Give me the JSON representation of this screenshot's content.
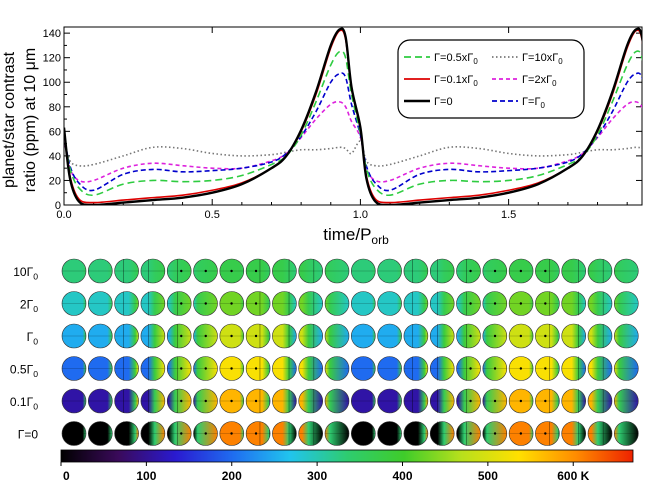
{
  "chart_data": [
    {
      "type": "line",
      "ylabel_line1": "planet/star contrast",
      "ylabel_line2": "ratio (ppm) at 10 μm",
      "xlabel_main": "time/P",
      "xlabel_sub": "orb",
      "xlim": [
        0,
        1.95
      ],
      "ylim": [
        0,
        145
      ],
      "xticks": [
        0.0,
        0.5,
        1.0,
        1.5
      ],
      "xtick_labels": [
        "0.0",
        "0.5",
        "1.0",
        "1.5"
      ],
      "yticks": [
        0,
        20,
        40,
        60,
        80,
        100,
        120,
        140
      ],
      "ytick_labels": [
        "0",
        "20",
        "40",
        "60",
        "80",
        "100",
        "120",
        "140"
      ],
      "legend_position": "top-right",
      "series": [
        {
          "name": "Γ=0.5xΓ0",
          "label_main": "Γ=0.5xΓ",
          "label_sub": "0",
          "color": "#2ecc40",
          "dash": "7,4",
          "x": [
            0.0,
            0.02,
            0.05,
            0.1,
            0.2,
            0.3,
            0.4,
            0.5,
            0.6,
            0.7,
            0.75,
            0.8,
            0.85,
            0.9,
            0.93,
            0.95,
            0.97,
            1.0
          ],
          "y": [
            58,
            30,
            14,
            8,
            17,
            20,
            19,
            20,
            24,
            33,
            40,
            57,
            84,
            114,
            125,
            120,
            90,
            58
          ]
        },
        {
          "name": "Γ=10xΓ0",
          "label_main": "Γ=10xΓ",
          "label_sub": "0",
          "color": "#777777",
          "dash": "1.5,2.5",
          "x": [
            0.0,
            0.02,
            0.05,
            0.1,
            0.2,
            0.3,
            0.4,
            0.5,
            0.6,
            0.7,
            0.75,
            0.8,
            0.85,
            0.9,
            0.93,
            0.95,
            0.97,
            1.0
          ],
          "y": [
            52,
            36,
            32,
            33,
            40,
            47,
            46,
            42,
            40,
            41,
            43,
            45,
            45,
            46,
            47,
            46,
            42,
            52
          ]
        },
        {
          "name": "Γ=0.1xΓ0",
          "label_main": "Γ=0.1xΓ",
          "label_sub": "0",
          "color": "#dd0000",
          "dash": "",
          "x": [
            0.0,
            0.02,
            0.05,
            0.1,
            0.2,
            0.3,
            0.4,
            0.5,
            0.6,
            0.7,
            0.75,
            0.8,
            0.85,
            0.9,
            0.93,
            0.95,
            0.97,
            1.0
          ],
          "y": [
            62,
            24,
            5,
            2,
            4,
            6,
            8,
            12,
            18,
            30,
            40,
            60,
            90,
            128,
            142,
            135,
            95,
            62
          ]
        },
        {
          "name": "Γ=2xΓ0",
          "label_main": "Γ=2xΓ",
          "label_sub": "0",
          "color": "#dd22dd",
          "dash": "4,3",
          "x": [
            0.0,
            0.02,
            0.05,
            0.1,
            0.2,
            0.3,
            0.4,
            0.5,
            0.6,
            0.7,
            0.75,
            0.8,
            0.85,
            0.9,
            0.93,
            0.95,
            0.97,
            1.0
          ],
          "y": [
            55,
            30,
            20,
            20,
            30,
            34,
            32,
            30,
            30,
            36,
            42,
            55,
            70,
            82,
            84,
            80,
            68,
            55
          ]
        },
        {
          "name": "Γ=0",
          "label_main": "Γ=0",
          "label_sub": "",
          "color": "#000000",
          "dash": "",
          "x": [
            0.0,
            0.02,
            0.05,
            0.1,
            0.2,
            0.3,
            0.4,
            0.5,
            0.6,
            0.7,
            0.75,
            0.8,
            0.85,
            0.9,
            0.93,
            0.95,
            0.97,
            1.0
          ],
          "y": [
            63,
            22,
            3,
            0,
            2,
            4,
            6,
            10,
            17,
            30,
            40,
            61,
            92,
            130,
            143,
            137,
            96,
            63
          ]
        },
        {
          "name": "Γ=Γ0",
          "label_main": "Γ=Γ",
          "label_sub": "0",
          "color": "#0000cc",
          "dash": "5,3",
          "x": [
            0.0,
            0.02,
            0.05,
            0.1,
            0.2,
            0.3,
            0.4,
            0.5,
            0.6,
            0.7,
            0.75,
            0.8,
            0.85,
            0.9,
            0.93,
            0.95,
            0.97,
            1.0
          ],
          "y": [
            57,
            32,
            18,
            12,
            25,
            29,
            27,
            28,
            30,
            35,
            42,
            56,
            76,
            100,
            107,
            104,
            82,
            57
          ]
        }
      ]
    },
    {
      "type": "heatmap",
      "row_labels": [
        {
          "main": "10Γ",
          "sub": "0"
        },
        {
          "main": "2Γ",
          "sub": "0"
        },
        {
          "main": "Γ",
          "sub": "0"
        },
        {
          "main": "0.5Γ",
          "sub": "0"
        },
        {
          "main": "0.1Γ",
          "sub": "0"
        },
        {
          "main": "Γ=0",
          "sub": ""
        }
      ],
      "n_columns": 22,
      "colorbar_ticks": [
        "0",
        "100",
        "200",
        "300",
        "400",
        "500",
        "600 K"
      ],
      "colorbar_tick_values": [
        0,
        100,
        200,
        300,
        400,
        500,
        600
      ],
      "colorbar_range": [
        0,
        670
      ],
      "colorbar_colors": [
        "#000000",
        "#3a0a5a",
        "#2a1ad0",
        "#1f6cf0",
        "#21c4ee",
        "#2ecc70",
        "#3fcc2a",
        "#b8e01c",
        "#ffe000",
        "#ff8c00",
        "#ee2200"
      ],
      "rows": [
        {
          "day": 370,
          "night": 330
        },
        {
          "day": 430,
          "night": 290
        },
        {
          "day": 490,
          "night": 250
        },
        {
          "day": 530,
          "night": 200
        },
        {
          "day": 570,
          "night": 110
        },
        {
          "day": 610,
          "night": 0
        }
      ]
    }
  ]
}
